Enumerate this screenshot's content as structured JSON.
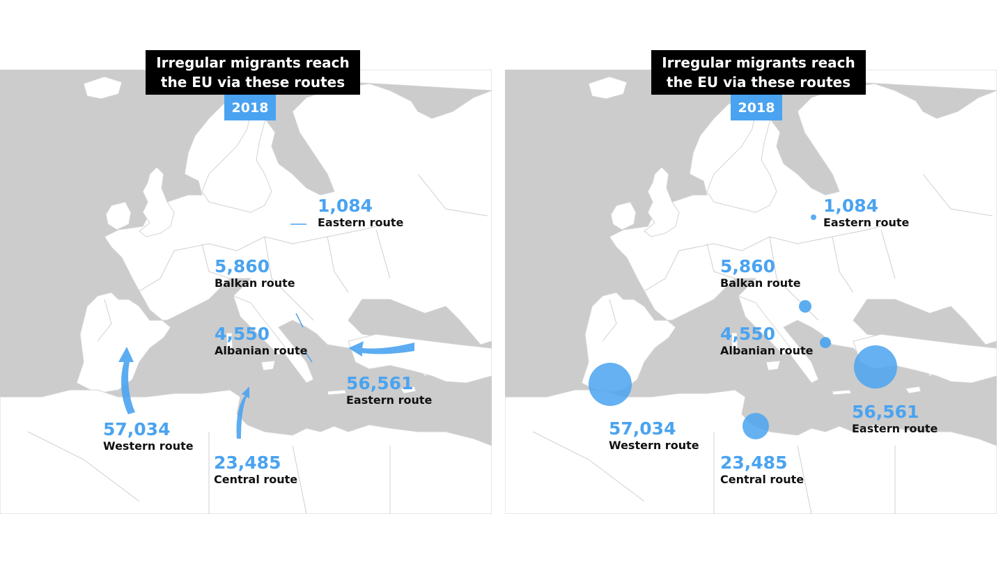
{
  "title": "Irregular migrants reach\nthe EU via these routes",
  "year": "2018",
  "colors": {
    "accent": "#4aa3f0",
    "sea": "#cccccc",
    "land": "#ffffff",
    "title_bg": "#000000"
  },
  "panels": [
    {
      "style": "arrows",
      "routes": [
        {
          "value": "1,084",
          "name": "Eastern route"
        },
        {
          "value": "5,860",
          "name": "Balkan route"
        },
        {
          "value": "4,550",
          "name": "Albanian route"
        },
        {
          "value": "56,561",
          "name": "Eastern route"
        },
        {
          "value": "57,034",
          "name": "Western route"
        },
        {
          "value": "23,485",
          "name": "Central route"
        }
      ]
    },
    {
      "style": "bubbles",
      "routes": [
        {
          "value": "1,084",
          "name": "Eastern route"
        },
        {
          "value": "5,860",
          "name": "Balkan route"
        },
        {
          "value": "4,550",
          "name": "Albanian route"
        },
        {
          "value": "56,561",
          "name": "Eastern route"
        },
        {
          "value": "57,034",
          "name": "Western route"
        },
        {
          "value": "23,485",
          "name": "Central route"
        }
      ]
    }
  ]
}
